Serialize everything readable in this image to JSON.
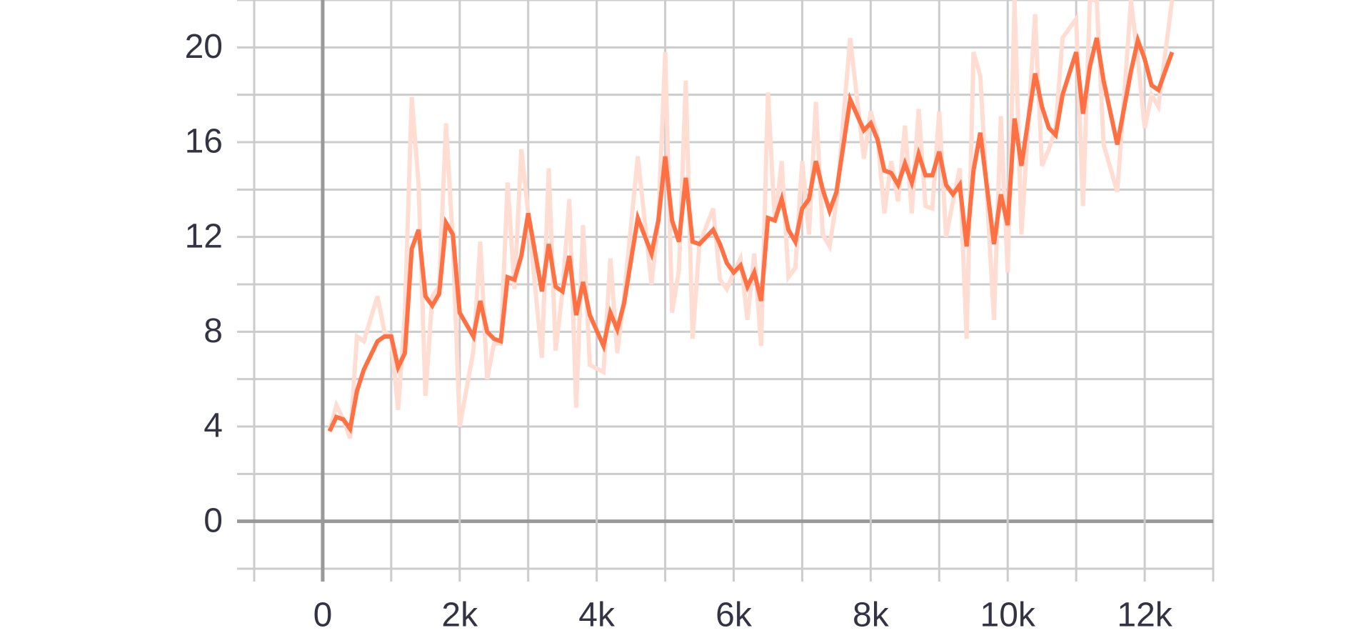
{
  "chart_data": {
    "type": "line",
    "x": [
      100,
      200,
      300,
      400,
      500,
      600,
      800,
      900,
      1000,
      1100,
      1200,
      1300,
      1400,
      1500,
      1600,
      1700,
      1800,
      1900,
      2000,
      2200,
      2300,
      2400,
      2500,
      2600,
      2700,
      2800,
      2900,
      3000,
      3200,
      3300,
      3400,
      3500,
      3600,
      3700,
      3800,
      3900,
      4100,
      4200,
      4300,
      4400,
      4600,
      4800,
      4900,
      5000,
      5100,
      5200,
      5300,
      5400,
      5500,
      5700,
      5800,
      5900,
      6000,
      6100,
      6200,
      6300,
      6400,
      6500,
      6600,
      6700,
      6800,
      6900,
      7000,
      7100,
      7200,
      7300,
      7400,
      7500,
      7700,
      7900,
      8000,
      8100,
      8200,
      8300,
      8400,
      8500,
      8600,
      8700,
      8800,
      8900,
      9000,
      9100,
      9200,
      9300,
      9400,
      9500,
      9600,
      9800,
      9900,
      10000,
      10100,
      10200,
      10400,
      10500,
      10600,
      10700,
      10800,
      11000,
      11100,
      11200,
      11300,
      11400,
      11600,
      11800,
      11900,
      12000,
      12100,
      12200,
      12400
    ],
    "series": [
      {
        "color": "#ffddd3",
        "values": [
          3.8,
          4.9,
          4.3,
          3.5,
          7.8,
          7.6,
          9.5,
          8.0,
          7.8,
          4.7,
          8.8,
          17.9,
          14.2,
          5.3,
          9.5,
          9.9,
          16.8,
          11.8,
          4.0,
          7.2,
          11.8,
          6.0,
          7.5,
          7.5,
          14.3,
          9.8,
          15.7,
          13.0,
          6.9,
          14.9,
          7.2,
          9.7,
          13.6,
          4.8,
          12.5,
          6.6,
          6.3,
          11.1,
          7.1,
          9.5,
          15.4,
          10.0,
          12.7,
          19.8,
          8.8,
          10.6,
          18.6,
          7.7,
          11.7,
          13.2,
          10.2,
          9.8,
          10.5,
          11.1,
          8.5,
          11.3,
          7.4,
          18.1,
          12.6,
          15.2,
          10.3,
          10.7,
          15.2,
          12.1,
          17.7,
          12.1,
          11.6,
          13.5,
          20.4,
          15.3,
          17.3,
          16.2,
          13.0,
          15.2,
          13.5,
          16.7,
          13.0,
          17.4,
          13.3,
          13.2,
          17.3,
          12.0,
          13.5,
          14.9,
          7.7,
          19.8,
          18.8,
          8.5,
          17.1,
          10.5,
          22,
          12.1,
          21.4,
          15.0,
          15.7,
          16.6,
          20.4,
          21.2,
          13.3,
          22,
          22,
          15.9,
          13.9,
          22,
          19.5,
          16.6,
          18.0,
          17.5,
          22
        ]
      },
      {
        "color": "#ff7043",
        "values": [
          3.8,
          4.4,
          4.3,
          3.9,
          5.5,
          6.4,
          7.6,
          7.8,
          7.8,
          6.5,
          7.1,
          11.5,
          12.3,
          9.5,
          9.1,
          9.6,
          12.6,
          12.1,
          8.8,
          7.8,
          9.3,
          8.0,
          7.7,
          7.6,
          10.3,
          10.2,
          11.2,
          13.0,
          9.7,
          11.7,
          9.9,
          9.7,
          11.2,
          8.7,
          10.1,
          8.7,
          7.4,
          8.8,
          8.1,
          9.2,
          12.8,
          11.3,
          12.7,
          15.4,
          12.7,
          11.8,
          14.5,
          11.8,
          11.7,
          12.3,
          11.7,
          10.9,
          10.5,
          10.8,
          9.9,
          10.5,
          9.3,
          12.8,
          12.7,
          13.6,
          12.3,
          11.8,
          13.2,
          13.6,
          15.2,
          14.0,
          13.1,
          13.9,
          17.8,
          16.5,
          16.8,
          16.1,
          14.8,
          14.7,
          14.2,
          15.1,
          14.3,
          15.5,
          14.6,
          14.6,
          15.6,
          14.2,
          13.8,
          14.2,
          11.6,
          14.8,
          16.4,
          11.7,
          13.8,
          12.5,
          17.0,
          15.0,
          18.9,
          17.5,
          16.6,
          16.3,
          18.0,
          19.8,
          17.2,
          19.2,
          20.4,
          18.6,
          15.9,
          19.0,
          20.3,
          19.5,
          18.4,
          18.2,
          19.8
        ]
      }
    ],
    "xlim": [
      -1000,
      13000
    ],
    "ylim": [
      -2,
      22
    ],
    "xticks": [
      {
        "value": 0,
        "label": "0"
      },
      {
        "value": 2000,
        "label": "2k"
      },
      {
        "value": 4000,
        "label": "4k"
      },
      {
        "value": 6000,
        "label": "6k"
      },
      {
        "value": 8000,
        "label": "8k"
      },
      {
        "value": 10000,
        "label": "10k"
      },
      {
        "value": 12000,
        "label": "12k"
      }
    ],
    "yticks": [
      0,
      4,
      8,
      12,
      16,
      20
    ],
    "x_minor_ticks": [
      -1000,
      1000,
      3000,
      5000,
      7000,
      9000,
      11000,
      13000
    ],
    "y_minor_ticks": [
      -2,
      2,
      6,
      10,
      14,
      18,
      22
    ],
    "grid": true
  }
}
